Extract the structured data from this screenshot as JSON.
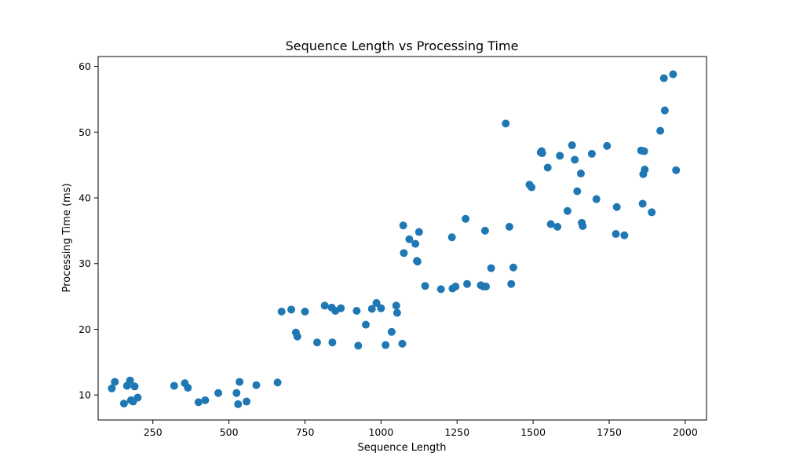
{
  "chart_data": {
    "type": "scatter",
    "title": "Sequence Length vs Processing Time",
    "xlabel": "Sequence Length",
    "ylabel": "Processing Time (ms)",
    "xlim": [
      70,
      2070
    ],
    "ylim": [
      6.2,
      61.5
    ],
    "xticks": [
      250,
      500,
      750,
      1000,
      1250,
      1500,
      1750,
      2000
    ],
    "yticks": [
      10,
      20,
      30,
      40,
      50,
      60
    ],
    "grid": false,
    "legend": "none",
    "marker_color": "#1f77b4",
    "x": [
      115,
      125,
      155,
      165,
      175,
      178,
      185,
      190,
      200,
      320,
      355,
      365,
      400,
      422,
      465,
      525,
      530,
      535,
      558,
      590,
      660,
      673,
      705,
      720,
      725,
      750,
      790,
      815,
      838,
      840,
      850,
      868,
      920,
      925,
      950,
      970,
      985,
      1000,
      1015,
      1035,
      1050,
      1053,
      1070,
      1073,
      1075,
      1093,
      1113,
      1118,
      1120,
      1125,
      1145,
      1197,
      1233,
      1235,
      1245,
      1278,
      1283,
      1328,
      1337,
      1342,
      1345,
      1362,
      1410,
      1422,
      1428,
      1435,
      1488,
      1495,
      1525,
      1528,
      1530,
      1548,
      1558,
      1580,
      1588,
      1613,
      1628,
      1637,
      1645,
      1657,
      1660,
      1663,
      1693,
      1708,
      1743,
      1772,
      1775,
      1800,
      1855,
      1860,
      1862,
      1865,
      1867,
      1890,
      1918,
      1930,
      1933,
      1960,
      1970
    ],
    "y": [
      11.0,
      12.0,
      8.7,
      11.4,
      12.2,
      9.2,
      9.0,
      11.3,
      9.6,
      11.4,
      11.8,
      11.1,
      8.9,
      9.2,
      10.3,
      10.3,
      8.6,
      12.0,
      9.0,
      11.5,
      11.9,
      22.7,
      23.0,
      19.5,
      18.9,
      22.7,
      18.0,
      23.6,
      23.3,
      18.0,
      22.8,
      23.2,
      22.8,
      17.5,
      20.7,
      23.1,
      24.0,
      23.2,
      17.6,
      19.6,
      23.6,
      22.5,
      17.8,
      35.8,
      31.6,
      33.7,
      33.0,
      30.4,
      30.3,
      34.8,
      26.6,
      26.1,
      34.0,
      26.2,
      26.5,
      36.8,
      26.9,
      26.7,
      26.5,
      35.0,
      26.5,
      29.3,
      51.3,
      35.6,
      26.9,
      29.4,
      42.0,
      41.6,
      46.9,
      47.1,
      46.8,
      44.6,
      36.0,
      35.6,
      46.4,
      38.0,
      48.0,
      45.8,
      41.0,
      43.7,
      36.2,
      35.7,
      46.7,
      39.8,
      47.9,
      34.5,
      38.6,
      34.3,
      47.2,
      39.1,
      43.6,
      47.1,
      44.3,
      37.8,
      50.2,
      58.2,
      53.3,
      58.8,
      44.2
    ]
  }
}
